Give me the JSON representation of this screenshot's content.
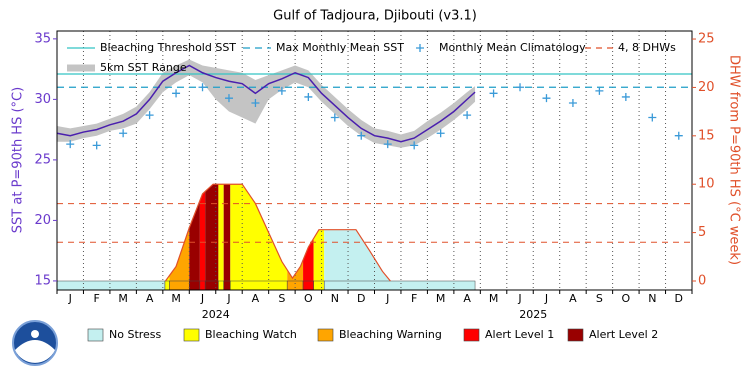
{
  "chart_data": {
    "type": "line",
    "title": "Gulf of Tadjoura, Djibouti (v3.1)",
    "ylabel": "SST at P=90th HS (°C)",
    "y2label": "DHW from P=90th HS (°C week)",
    "categories": [
      "J",
      "F",
      "M",
      "A",
      "M",
      "J",
      "J",
      "A",
      "S",
      "O",
      "N",
      "D",
      "J",
      "F",
      "M",
      "A",
      "M",
      "J",
      "J",
      "A",
      "S",
      "O",
      "N",
      "D"
    ],
    "years": [
      "2024",
      "2025"
    ],
    "xlim": [
      0,
      24
    ],
    "xticks": [
      0,
      1,
      2,
      3,
      4,
      5,
      6,
      7,
      8,
      9,
      10,
      11,
      12,
      13,
      14,
      15,
      16,
      17,
      18,
      19,
      20,
      21,
      22,
      23,
      24
    ],
    "ylim": [
      14.25,
      35.65
    ],
    "yticks": [
      15,
      20,
      25,
      30,
      35
    ],
    "y2lim": [
      -0.93,
      25.83
    ],
    "y2ticks": [
      0,
      5,
      10,
      15,
      20,
      25
    ],
    "threshold": {
      "name": "Bleaching Threshold SST",
      "value": 32.1,
      "color": "#33c4c4"
    },
    "mmm": {
      "name": "Max Monthly Mean SST",
      "value": 31.0,
      "color": "#1e9ec8"
    },
    "dhw_levels": {
      "name": "4, 8 DHWs",
      "values": [
        4,
        8
      ],
      "color": "#e0502a",
      "axis": "y2"
    },
    "climatology": {
      "name": "Monthly Mean Climatology",
      "color": "#3a9ad8",
      "x": [
        0.5,
        1.5,
        2.5,
        3.5,
        4.5,
        5.5,
        6.5,
        7.5,
        8.5,
        9.5,
        10.5,
        11.5,
        12.5,
        13.5,
        14.5,
        15.5,
        16.5,
        17.5,
        18.5,
        19.5,
        20.5,
        21.5,
        22.5,
        23.5
      ],
      "values": [
        26.3,
        26.2,
        27.2,
        28.7,
        30.5,
        31.0,
        30.1,
        29.7,
        30.7,
        30.2,
        28.5,
        27.0,
        26.3,
        26.2,
        27.2,
        28.7,
        30.5,
        31.0,
        30.1,
        29.7,
        30.7,
        30.2,
        28.5,
        27.0
      ]
    },
    "sst_range": {
      "name": "5km SST Range",
      "color": "#c4c4c4",
      "x": [
        0,
        0.5,
        1,
        1.5,
        2,
        2.5,
        3,
        3.5,
        4,
        4.5,
        5,
        5.5,
        6,
        6.5,
        7,
        7.5,
        8,
        8.5,
        9,
        9.5,
        10,
        10.5,
        11,
        11.5,
        12,
        12.5,
        13,
        13.5,
        14,
        14.5,
        15,
        15.5,
        15.8
      ],
      "low": [
        26.5,
        26.5,
        26.8,
        27.0,
        27.4,
        27.6,
        28.0,
        29.2,
        30.6,
        31.4,
        32.0,
        31.4,
        30.0,
        29.0,
        28.5,
        28.0,
        30.0,
        30.8,
        31.4,
        31.0,
        29.8,
        28.8,
        27.8,
        27.0,
        26.4,
        26.2,
        26.0,
        26.2,
        26.8,
        27.5,
        28.3,
        29.2,
        29.8
      ],
      "high": [
        27.8,
        27.6,
        27.8,
        28.0,
        28.4,
        28.8,
        29.4,
        30.6,
        32.2,
        32.8,
        33.3,
        32.8,
        32.6,
        32.4,
        32.2,
        31.6,
        32.0,
        32.4,
        32.8,
        32.4,
        31.2,
        30.2,
        29.2,
        28.3,
        27.6,
        27.4,
        27.1,
        27.4,
        28.2,
        28.9,
        29.7,
        30.6,
        31.1
      ]
    },
    "sst": {
      "color": "#4a1fae",
      "x": [
        0,
        0.5,
        1,
        1.5,
        2,
        2.5,
        3,
        3.5,
        4,
        4.5,
        5,
        5.5,
        6,
        6.5,
        7,
        7.5,
        8,
        8.5,
        9,
        9.5,
        10,
        10.5,
        11,
        11.5,
        12,
        12.5,
        13,
        13.5,
        14,
        14.5,
        15,
        15.5,
        15.8
      ],
      "values": [
        27.2,
        27.0,
        27.3,
        27.5,
        27.9,
        28.2,
        28.8,
        30.0,
        31.5,
        32.2,
        32.8,
        32.2,
        31.8,
        31.5,
        31.3,
        30.5,
        31.3,
        31.7,
        32.2,
        31.8,
        30.5,
        29.5,
        28.5,
        27.6,
        27.0,
        26.8,
        26.5,
        26.8,
        27.5,
        28.2,
        29.0,
        30.0,
        30.6
      ]
    },
    "dhw": {
      "color": "#e0502a",
      "axis": "y2",
      "x": [
        4.1,
        4.5,
        5.0,
        5.5,
        5.9,
        7.0,
        7.5,
        8.0,
        8.5,
        8.9,
        9.2,
        9.5,
        9.9,
        11.3,
        11.8,
        12.3,
        12.6
      ],
      "values": [
        0,
        1.5,
        5.5,
        9.0,
        10.0,
        10.0,
        8.0,
        5.0,
        2.0,
        0.3,
        1.5,
        3.5,
        5.3,
        5.3,
        3.2,
        1.0,
        0
      ]
    },
    "stress": {
      "levels": [
        {
          "name": "No Stress",
          "color": "#c4f0f0"
        },
        {
          "name": "Bleaching Watch",
          "color": "#ffff00"
        },
        {
          "name": "Bleaching Warning",
          "color": "#ffa500"
        },
        {
          "name": "Alert Level 1",
          "color": "#ff0000"
        },
        {
          "name": "Alert Level 2",
          "color": "#990000"
        }
      ],
      "start": [
        0,
        4.08,
        4.25,
        5.0,
        5.4,
        5.6,
        6.1,
        6.3,
        6.55,
        8.7,
        9.3,
        9.7,
        10.1
      ],
      "end": [
        4.08,
        4.25,
        5.0,
        5.4,
        5.6,
        6.1,
        6.3,
        6.55,
        8.7,
        9.3,
        9.7,
        10.1,
        15.8
      ],
      "level": [
        0,
        1,
        2,
        4,
        3,
        4,
        1,
        4,
        1,
        2,
        3,
        1,
        0
      ]
    }
  }
}
